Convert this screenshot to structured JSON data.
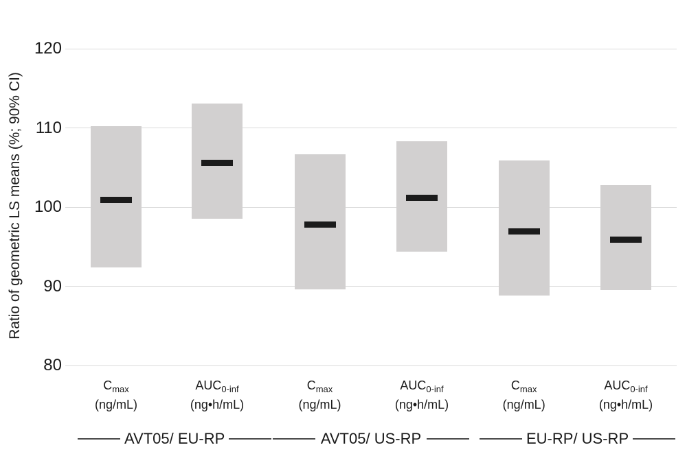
{
  "chart_data": {
    "type": "bar",
    "subtype": "floating-range-bars-with-point-estimates",
    "title": "",
    "ylabel": "Ratio of geometric LS means (%; 90% CI)",
    "xlabel": "",
    "ylim": [
      80,
      122
    ],
    "yticks": [
      120,
      110,
      100,
      90,
      80
    ],
    "grid": "horizontal",
    "legend_position": "none",
    "group_labels": [
      "AVT05/ EU-RP",
      "AVT05/ US-RP",
      "EU-RP/ US-RP"
    ],
    "series": [
      {
        "group": "AVT05/ EU-RP",
        "param_main": "C",
        "param_sub": "max",
        "unit": "(ng/mL)",
        "estimate": 100.9,
        "ci_low": 92.4,
        "ci_high": 110.2
      },
      {
        "group": "AVT05/ EU-RP",
        "param_main": "AUC",
        "param_sub": "0-inf",
        "unit": "(ng•h/mL)",
        "estimate": 105.6,
        "ci_low": 98.5,
        "ci_high": 113.1
      },
      {
        "group": "AVT05/ US-RP",
        "param_main": "C",
        "param_sub": "max",
        "unit": "(ng/mL)",
        "estimate": 97.8,
        "ci_low": 89.6,
        "ci_high": 106.7
      },
      {
        "group": "AVT05/ US-RP",
        "param_main": "AUC",
        "param_sub": "0-inf",
        "unit": "(ng•h/mL)",
        "estimate": 101.2,
        "ci_low": 94.4,
        "ci_high": 108.3
      },
      {
        "group": "EU-RP/ US-RP",
        "param_main": "C",
        "param_sub": "max",
        "unit": "(ng/mL)",
        "estimate": 96.9,
        "ci_low": 88.8,
        "ci_high": 105.9
      },
      {
        "group": "EU-RP/ US-RP",
        "param_main": "AUC",
        "param_sub": "0-inf",
        "unit": "(ng•h/mL)",
        "estimate": 95.9,
        "ci_low": 89.5,
        "ci_high": 102.8
      }
    ],
    "colors": {
      "bar_fill": "#d2d0d0",
      "point_marker": "#1b1b1b",
      "gridline": "#dadada",
      "text": "#1a1a1a",
      "group_rule": "#4a4a4a",
      "background": "#ffffff"
    }
  }
}
